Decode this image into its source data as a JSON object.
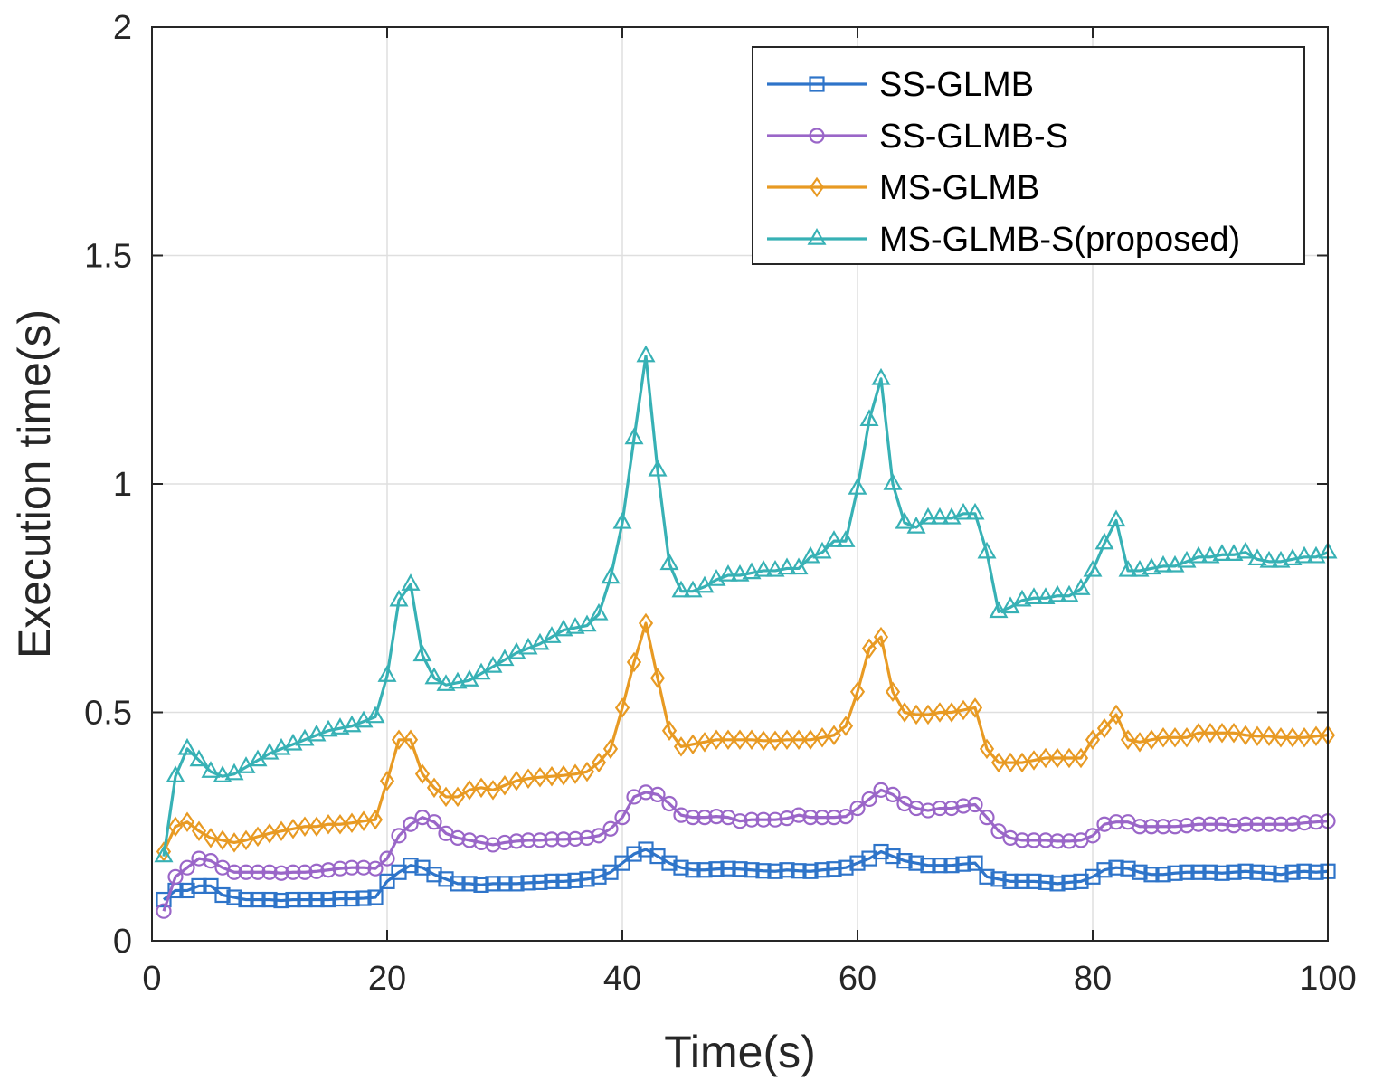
{
  "chart_data": {
    "type": "line",
    "title": "",
    "xlabel": "Time(s)",
    "ylabel": "Execution time(s)",
    "xlim": [
      0,
      100
    ],
    "ylim": [
      0,
      2
    ],
    "xticks": [
      0,
      20,
      40,
      60,
      80,
      100
    ],
    "xtick_labels": [
      "0",
      "20",
      "40",
      "60",
      "80",
      "100"
    ],
    "yticks": [
      0,
      0.5,
      1,
      1.5,
      2
    ],
    "ytick_labels": [
      "0",
      "0.5",
      "1",
      "1.5",
      "2"
    ],
    "grid": true,
    "legend_position": "top-right",
    "x": [
      1,
      2,
      3,
      4,
      5,
      6,
      7,
      8,
      9,
      10,
      11,
      12,
      13,
      14,
      15,
      16,
      17,
      18,
      19,
      20,
      21,
      22,
      23,
      24,
      25,
      26,
      27,
      28,
      29,
      30,
      31,
      32,
      33,
      34,
      35,
      36,
      37,
      38,
      39,
      40,
      41,
      42,
      43,
      44,
      45,
      46,
      47,
      48,
      49,
      50,
      51,
      52,
      53,
      54,
      55,
      56,
      57,
      58,
      59,
      60,
      61,
      62,
      63,
      64,
      65,
      66,
      67,
      68,
      69,
      70,
      71,
      72,
      73,
      74,
      75,
      76,
      77,
      78,
      79,
      80,
      81,
      82,
      83,
      84,
      85,
      86,
      87,
      88,
      89,
      90,
      91,
      92,
      93,
      94,
      95,
      96,
      97,
      98,
      99,
      100
    ],
    "series": [
      {
        "name": "SS-GLMB",
        "color": "#2E74C9",
        "marker": "square",
        "values": [
          0.09,
          0.11,
          0.11,
          0.12,
          0.12,
          0.1,
          0.095,
          0.09,
          0.09,
          0.09,
          0.088,
          0.09,
          0.09,
          0.09,
          0.09,
          0.092,
          0.092,
          0.093,
          0.095,
          0.13,
          0.15,
          0.165,
          0.16,
          0.145,
          0.135,
          0.125,
          0.125,
          0.122,
          0.125,
          0.125,
          0.125,
          0.127,
          0.128,
          0.13,
          0.13,
          0.132,
          0.135,
          0.14,
          0.15,
          0.17,
          0.19,
          0.2,
          0.185,
          0.17,
          0.16,
          0.155,
          0.155,
          0.157,
          0.158,
          0.157,
          0.155,
          0.153,
          0.152,
          0.155,
          0.153,
          0.152,
          0.155,
          0.157,
          0.16,
          0.17,
          0.18,
          0.195,
          0.185,
          0.175,
          0.17,
          0.165,
          0.165,
          0.165,
          0.168,
          0.17,
          0.14,
          0.135,
          0.13,
          0.13,
          0.13,
          0.128,
          0.125,
          0.128,
          0.13,
          0.14,
          0.155,
          0.16,
          0.158,
          0.15,
          0.145,
          0.145,
          0.148,
          0.15,
          0.15,
          0.15,
          0.148,
          0.15,
          0.152,
          0.15,
          0.148,
          0.145,
          0.15,
          0.152,
          0.15,
          0.152
        ]
      },
      {
        "name": "SS-GLMB-S",
        "color": "#9A66C8",
        "marker": "circle",
        "values": [
          0.065,
          0.14,
          0.16,
          0.18,
          0.175,
          0.16,
          0.15,
          0.15,
          0.15,
          0.15,
          0.148,
          0.15,
          0.15,
          0.152,
          0.155,
          0.158,
          0.16,
          0.16,
          0.158,
          0.18,
          0.23,
          0.255,
          0.27,
          0.26,
          0.235,
          0.225,
          0.22,
          0.215,
          0.21,
          0.215,
          0.218,
          0.22,
          0.22,
          0.222,
          0.222,
          0.223,
          0.225,
          0.23,
          0.245,
          0.27,
          0.315,
          0.325,
          0.32,
          0.3,
          0.275,
          0.27,
          0.27,
          0.272,
          0.27,
          0.262,
          0.265,
          0.265,
          0.265,
          0.268,
          0.275,
          0.27,
          0.27,
          0.27,
          0.272,
          0.29,
          0.31,
          0.33,
          0.32,
          0.3,
          0.29,
          0.285,
          0.29,
          0.29,
          0.295,
          0.298,
          0.27,
          0.24,
          0.225,
          0.22,
          0.22,
          0.22,
          0.218,
          0.218,
          0.22,
          0.23,
          0.255,
          0.26,
          0.26,
          0.25,
          0.25,
          0.25,
          0.25,
          0.252,
          0.255,
          0.255,
          0.255,
          0.252,
          0.255,
          0.255,
          0.255,
          0.255,
          0.255,
          0.258,
          0.26,
          0.262
        ]
      },
      {
        "name": "MS-GLMB",
        "color": "#E89A23",
        "marker": "diamond",
        "values": [
          0.195,
          0.25,
          0.26,
          0.24,
          0.225,
          0.22,
          0.215,
          0.22,
          0.228,
          0.235,
          0.24,
          0.245,
          0.25,
          0.25,
          0.255,
          0.255,
          0.258,
          0.262,
          0.265,
          0.35,
          0.44,
          0.44,
          0.365,
          0.335,
          0.315,
          0.315,
          0.33,
          0.335,
          0.33,
          0.34,
          0.35,
          0.355,
          0.358,
          0.36,
          0.362,
          0.365,
          0.37,
          0.39,
          0.42,
          0.51,
          0.61,
          0.695,
          0.575,
          0.46,
          0.425,
          0.43,
          0.435,
          0.44,
          0.44,
          0.44,
          0.44,
          0.438,
          0.438,
          0.44,
          0.44,
          0.44,
          0.445,
          0.45,
          0.47,
          0.545,
          0.64,
          0.665,
          0.545,
          0.5,
          0.495,
          0.495,
          0.5,
          0.5,
          0.505,
          0.51,
          0.42,
          0.39,
          0.39,
          0.39,
          0.395,
          0.4,
          0.4,
          0.4,
          0.4,
          0.44,
          0.465,
          0.495,
          0.44,
          0.435,
          0.44,
          0.445,
          0.445,
          0.445,
          0.455,
          0.455,
          0.455,
          0.455,
          0.45,
          0.448,
          0.448,
          0.445,
          0.445,
          0.445,
          0.448,
          0.45
        ]
      },
      {
        "name": "MS-GLMB-S(proposed)",
        "color": "#37B1B5",
        "marker": "triangle",
        "values": [
          0.185,
          0.36,
          0.42,
          0.395,
          0.37,
          0.36,
          0.365,
          0.38,
          0.395,
          0.41,
          0.42,
          0.43,
          0.44,
          0.45,
          0.46,
          0.465,
          0.47,
          0.48,
          0.49,
          0.58,
          0.745,
          0.78,
          0.625,
          0.575,
          0.56,
          0.565,
          0.57,
          0.585,
          0.6,
          0.615,
          0.63,
          0.64,
          0.65,
          0.665,
          0.68,
          0.685,
          0.69,
          0.715,
          0.795,
          0.915,
          1.1,
          1.28,
          1.03,
          0.825,
          0.765,
          0.765,
          0.775,
          0.79,
          0.8,
          0.8,
          0.805,
          0.81,
          0.81,
          0.815,
          0.815,
          0.84,
          0.85,
          0.875,
          0.875,
          0.99,
          1.14,
          1.23,
          1.0,
          0.915,
          0.905,
          0.925,
          0.925,
          0.925,
          0.935,
          0.935,
          0.85,
          0.72,
          0.73,
          0.745,
          0.75,
          0.75,
          0.755,
          0.755,
          0.77,
          0.81,
          0.87,
          0.92,
          0.81,
          0.81,
          0.815,
          0.82,
          0.82,
          0.83,
          0.84,
          0.84,
          0.845,
          0.845,
          0.85,
          0.835,
          0.83,
          0.83,
          0.835,
          0.84,
          0.84,
          0.85
        ]
      }
    ]
  }
}
